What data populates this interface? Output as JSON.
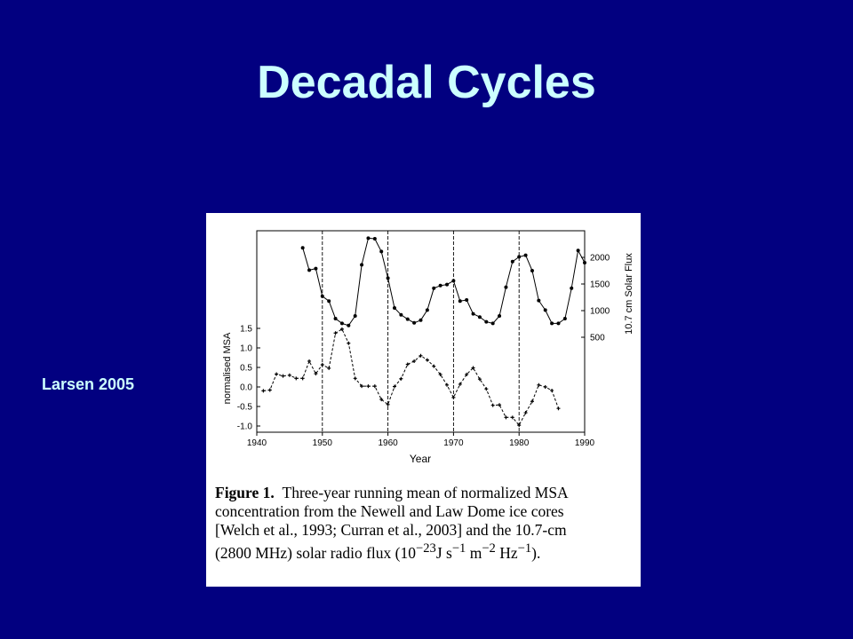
{
  "slide": {
    "title": "Decadal Cycles",
    "side_label": "Larsen 2005"
  },
  "caption": {
    "label": "Figure 1.",
    "lines": [
      "Three-year running mean of normalized MSA",
      "concentration from the Newell and Law Dome ice cores",
      "[Welch et al., 1993; Curran et al., 2003] and the 10.7-cm",
      "(2800 MHz) solar radio flux (10",
      "−23",
      "J s",
      "−1",
      " m",
      "−2",
      " Hz",
      "−1",
      ")."
    ]
  },
  "chart_data": {
    "type": "line",
    "xlabel": "Year",
    "ylabel_left": "normalised MSA",
    "ylabel_right": "10.7 cm Solar Flux",
    "xlim": [
      1940,
      1990
    ],
    "x_ticks": [
      "1940",
      "1950",
      "1960",
      "1970",
      "1980",
      "1990"
    ],
    "y_left_ticks": [
      "1.5",
      "1.0",
      "0.5",
      "0.0",
      "-0.5",
      "-1.0"
    ],
    "y_right_ticks": [
      "2000",
      "1500",
      "1000",
      "500"
    ],
    "vertical_lines_at": [
      1950,
      1960,
      1970,
      1980
    ],
    "series": [
      {
        "style": "solid",
        "axis": "right",
        "x": [
          1947,
          1948,
          1949,
          1950,
          1951,
          1952,
          1953,
          1954,
          1955,
          1956,
          1957,
          1958,
          1959,
          1960,
          1961,
          1962,
          1963,
          1964,
          1965,
          1966,
          1967,
          1968,
          1969,
          1970,
          1971,
          1972,
          1973,
          1974,
          1975,
          1976,
          1977,
          1978,
          1979,
          1980,
          1981,
          1982,
          1983,
          1984,
          1985,
          1986,
          1987,
          1988,
          1989,
          1990
        ],
        "y": [
          2180,
          1760,
          1790,
          1270,
          1180,
          850,
          760,
          720,
          900,
          1860,
          2360,
          2350,
          2110,
          1610,
          1050,
          920,
          840,
          770,
          820,
          1010,
          1420,
          1470,
          1490,
          1560,
          1180,
          1200,
          940,
          880,
          790,
          760,
          900,
          1440,
          1920,
          2010,
          2040,
          1750,
          1190,
          1010,
          760,
          760,
          850,
          1420,
          2130,
          1900
        ]
      },
      {
        "style": "dashed",
        "axis": "left",
        "x": [
          1941,
          1942,
          1943,
          1944,
          1945,
          1946,
          1947,
          1948,
          1949,
          1950,
          1951,
          1952,
          1953,
          1954,
          1955,
          1956,
          1957,
          1958,
          1959,
          1960,
          1961,
          1962,
          1963,
          1964,
          1965,
          1966,
          1967,
          1968,
          1969,
          1970,
          1971,
          1972,
          1973,
          1974,
          1975,
          1976,
          1977,
          1978,
          1979,
          1980,
          1981,
          1982,
          1983,
          1984,
          1985,
          1986
        ],
        "y": [
          -0.1,
          -0.08,
          0.33,
          0.28,
          0.3,
          0.22,
          0.22,
          0.66,
          0.34,
          0.57,
          0.48,
          1.38,
          1.48,
          1.12,
          0.22,
          0.02,
          0.02,
          0.02,
          -0.32,
          -0.45,
          0.01,
          0.21,
          0.58,
          0.66,
          0.8,
          0.69,
          0.53,
          0.32,
          0.05,
          -0.27,
          0.07,
          0.32,
          0.49,
          0.2,
          -0.05,
          -0.47,
          -0.46,
          -0.78,
          -0.78,
          -0.98,
          -0.66,
          -0.37,
          0.05,
          0.0,
          -0.09,
          -0.55
        ]
      }
    ]
  }
}
